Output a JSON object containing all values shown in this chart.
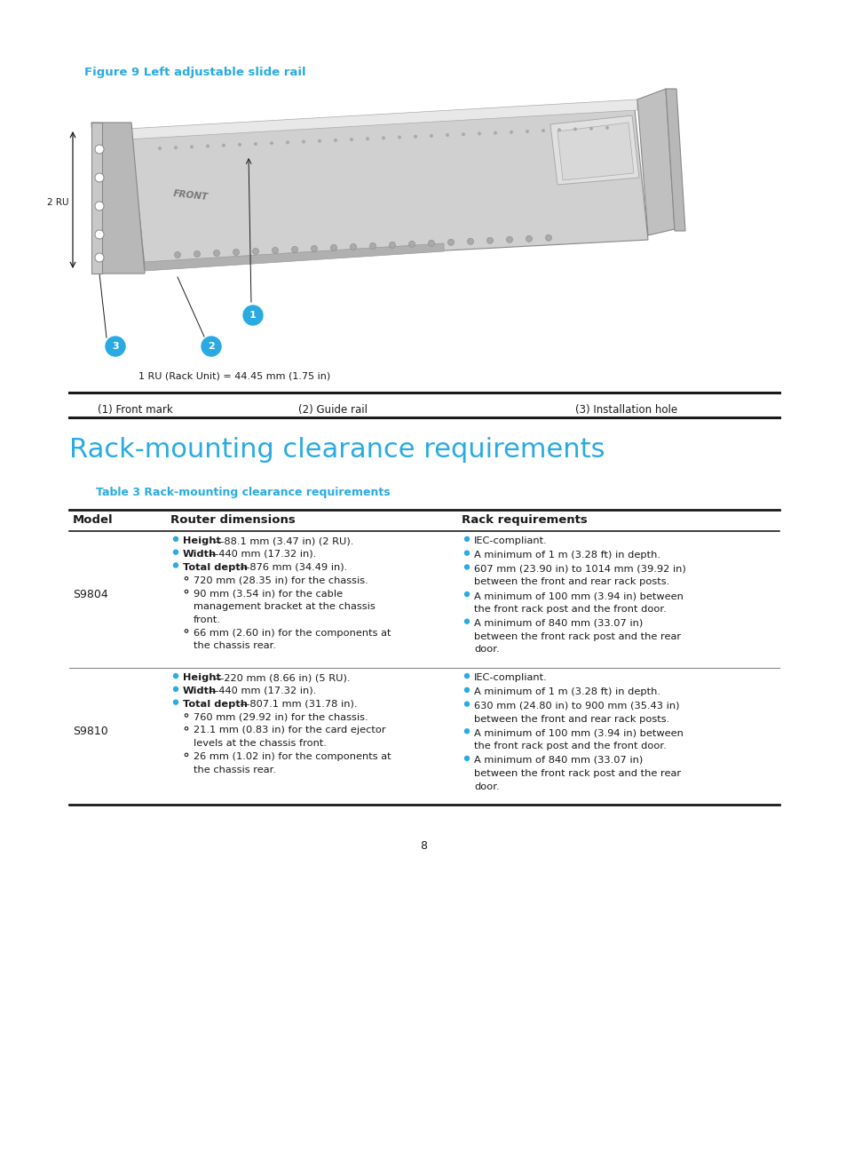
{
  "page_bg": "#ffffff",
  "cyan_color": "#29ABE2",
  "dark_color": "#1a1a1a",
  "figure_caption": "Figure 9 Left adjustable slide rail",
  "legend_items": [
    "(1) Front mark",
    "(2) Guide rail",
    "(3) Installation hole"
  ],
  "section_title": "Rack-mounting clearance requirements",
  "table_caption": "Table 3 Rack-mounting clearance requirements",
  "table_headers": [
    "Model",
    "Router dimensions",
    "Rack requirements"
  ],
  "page_number": "8",
  "ru_label": "1 RU (Rack Unit) = 44.45 mm (1.75 in)"
}
